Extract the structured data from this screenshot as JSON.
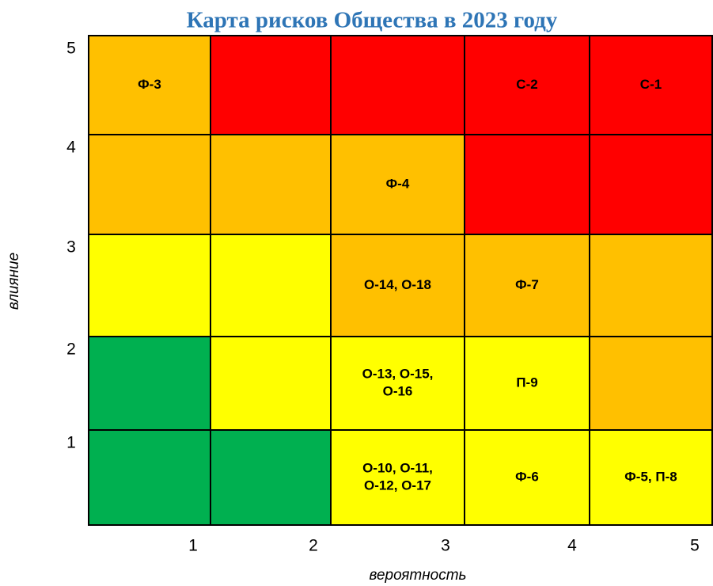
{
  "title": "Карта рисков Общества в 2023 году",
  "x_axis": {
    "label": "вероятность",
    "ticks": [
      "1",
      "2",
      "3",
      "4",
      "5"
    ]
  },
  "y_axis": {
    "label": "влияние",
    "ticks": [
      "5",
      "4",
      "3",
      "2",
      "1"
    ]
  },
  "rows": [
    [
      {
        "color": "#ffc000",
        "label": [
          "Ф-3"
        ]
      },
      {
        "color": "#ff0000"
      },
      {
        "color": "#ff0000"
      },
      {
        "color": "#ff0000",
        "label": [
          "С-2"
        ]
      },
      {
        "color": "#ff0000",
        "label": [
          "С-1"
        ]
      }
    ],
    [
      {
        "color": "#ffc000"
      },
      {
        "color": "#ffc000"
      },
      {
        "color": "#ffc000",
        "label": [
          "Ф-4"
        ]
      },
      {
        "color": "#ff0000"
      },
      {
        "color": "#ff0000"
      }
    ],
    [
      {
        "color": "#ffff00"
      },
      {
        "color": "#ffff00"
      },
      {
        "color": "#ffc000",
        "label": [
          "О-14, О-18"
        ]
      },
      {
        "color": "#ffc000",
        "label": [
          "Ф-7"
        ]
      },
      {
        "color": "#ffc000"
      }
    ],
    [
      {
        "color": "#00b050"
      },
      {
        "color": "#ffff00"
      },
      {
        "color": "#ffff00",
        "label": [
          "О-13, О-15,",
          "О-16"
        ]
      },
      {
        "color": "#ffff00",
        "label": [
          "П-9"
        ]
      },
      {
        "color": "#ffc000"
      }
    ],
    [
      {
        "color": "#00b050"
      },
      {
        "color": "#00b050"
      },
      {
        "color": "#ffff00",
        "label": [
          "О-10, О-11,",
          "О-12, О-17"
        ]
      },
      {
        "color": "#ffff00",
        "label": [
          "Ф-6"
        ]
      },
      {
        "color": "#ffff00",
        "label": [
          "Ф-5, П-8"
        ]
      }
    ]
  ]
}
